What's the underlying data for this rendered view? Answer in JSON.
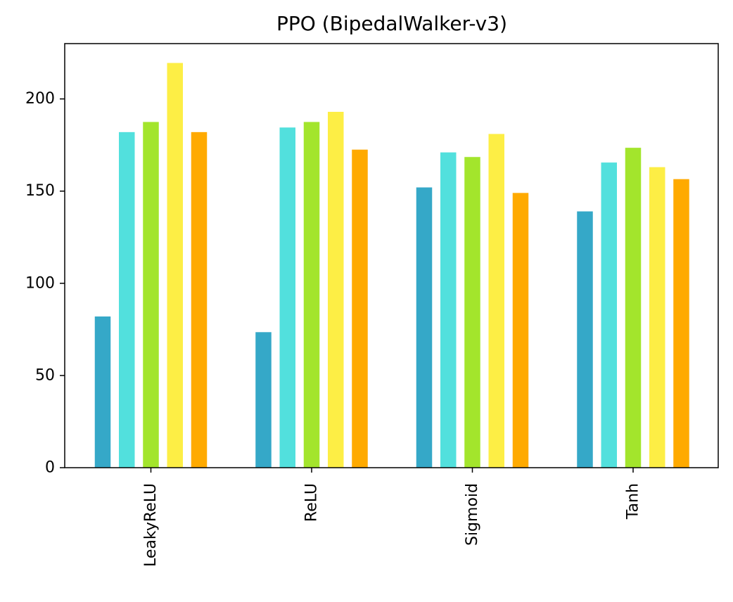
{
  "chart_data": {
    "type": "bar",
    "title": "PPO (BipedalWalker-v3)",
    "xlabel": "",
    "ylabel": "",
    "categories": [
      "LeakyReLU",
      "ReLU",
      "Sigmoid",
      "Tanh"
    ],
    "ylim": [
      0,
      230
    ],
    "yticks": [
      0,
      50,
      100,
      150,
      200
    ],
    "grid": false,
    "legend": "none",
    "series": [
      {
        "color": "#35a8c8",
        "values": [
          82,
          73.5,
          152,
          139
        ]
      },
      {
        "color": "#52e0dd",
        "values": [
          182,
          184.5,
          171,
          165.5
        ]
      },
      {
        "color": "#a3e52c",
        "values": [
          187.5,
          187.5,
          168.5,
          173.5
        ]
      },
      {
        "color": "#fdee45",
        "values": [
          219.5,
          193,
          181,
          163
        ]
      },
      {
        "color": "#ffaa00",
        "values": [
          182,
          172.5,
          149,
          156.5
        ]
      }
    ]
  }
}
